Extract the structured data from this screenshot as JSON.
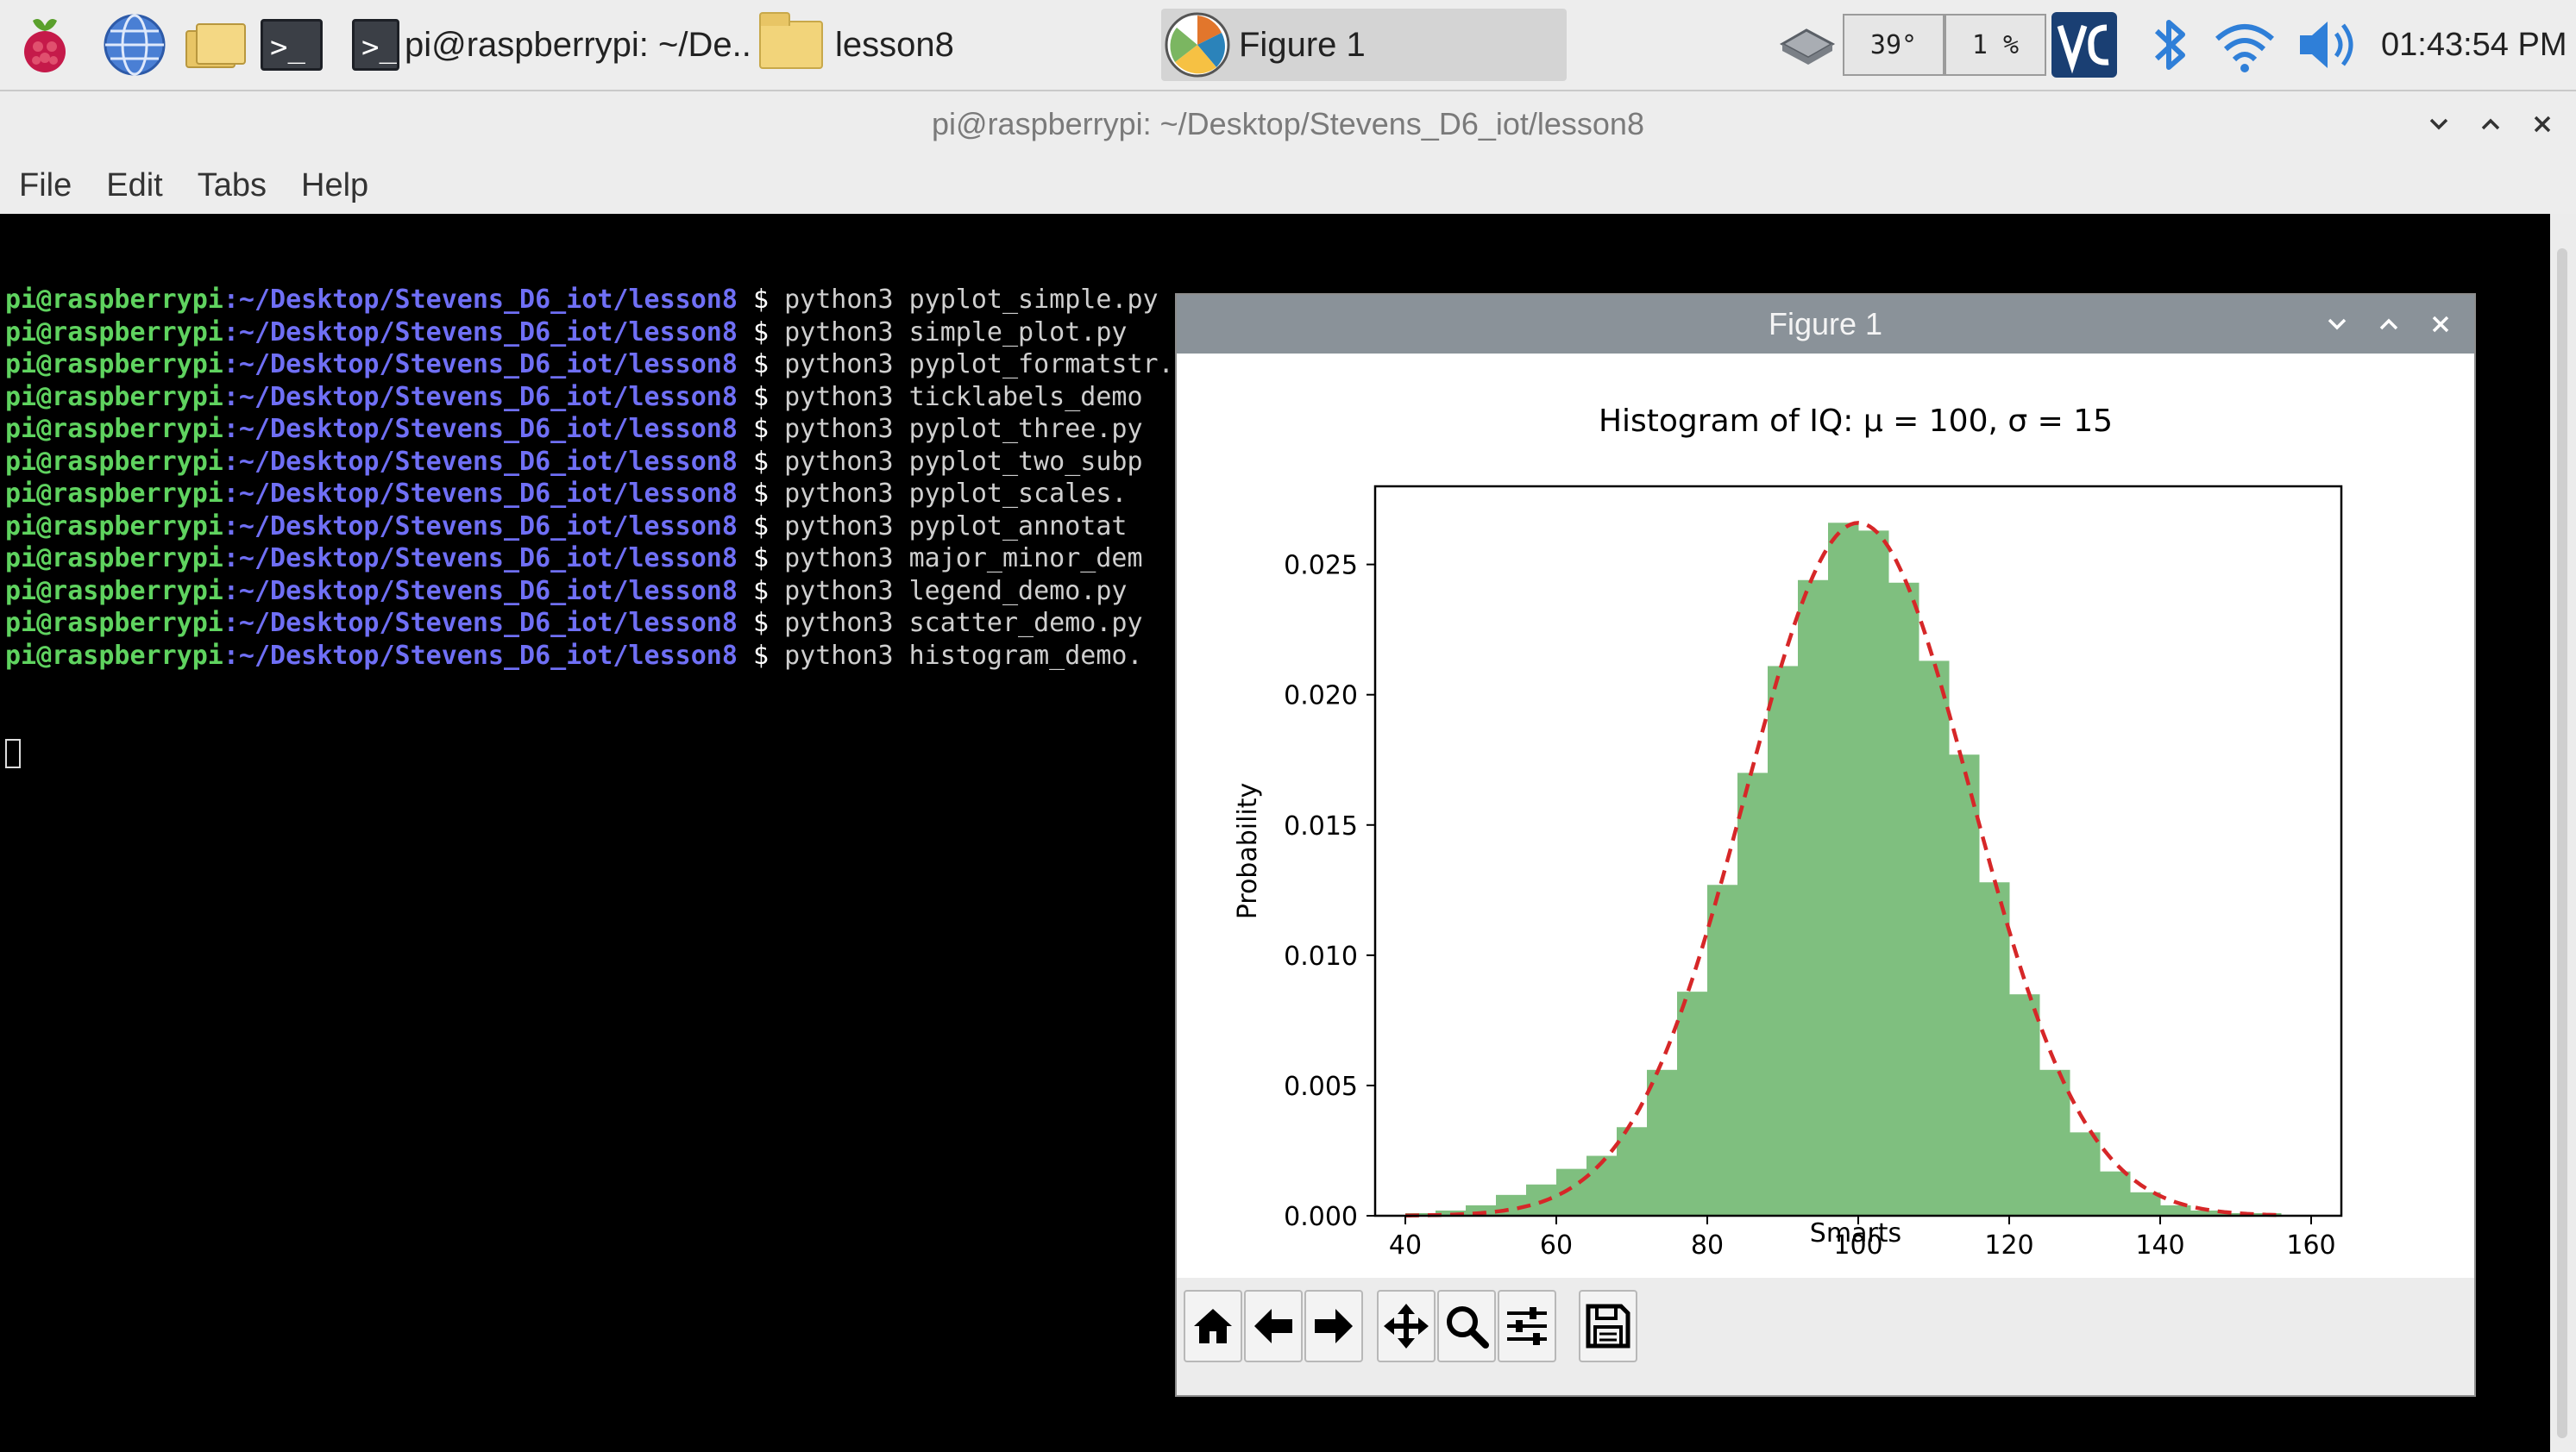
{
  "taskbar": {
    "tasks": [
      {
        "label": "pi@raspberrypi: ~/De...",
        "icon": "terminal-icon"
      },
      {
        "label": "lesson8",
        "icon": "folder-icon"
      },
      {
        "label": "Figure 1",
        "icon": "matplotlib-icon"
      }
    ],
    "cpu_temp": "39°",
    "cpu_usage": "1 %",
    "clock": "01:43:54 PM",
    "launchers": [
      "raspberry-menu-icon",
      "web-browser-icon",
      "file-manager-icon",
      "terminal-icon"
    ],
    "tray_icons": [
      "eject-icon",
      "vnc-icon",
      "bluetooth-icon",
      "wifi-icon",
      "volume-icon"
    ]
  },
  "terminal": {
    "title": "pi@raspberrypi: ~/Desktop/Stevens_D6_iot/lesson8",
    "menu": [
      "File",
      "Edit",
      "Tabs",
      "Help"
    ],
    "user": "pi@raspberrypi",
    "path": ":~/Desktop/Stevens_D6_iot/lesson8",
    "prompt_symbol": " $ ",
    "commands": [
      "python3 pyplot_simple.py",
      "python3 simple_plot.py",
      "python3 pyplot_formatstr.py",
      "python3 ticklabels_demo",
      "python3 pyplot_three.py",
      "python3 pyplot_two_subp",
      "python3 pyplot_scales.",
      "python3 pyplot_annotat",
      "python3 major_minor_dem",
      "python3 legend_demo.py",
      "python3 scatter_demo.py",
      "python3 histogram_demo."
    ]
  },
  "figure": {
    "window_title": "Figure 1",
    "toolbar": [
      "home-icon",
      "back-arrow-icon",
      "forward-arrow-icon",
      "pan-icon",
      "zoom-icon",
      "configure-subplots-icon",
      "save-icon"
    ]
  },
  "chart_data": {
    "type": "bar",
    "title": "Histogram of IQ: μ = 100, σ = 15",
    "xlabel": "Smarts",
    "ylabel": "Probability",
    "xlim": [
      36,
      164
    ],
    "ylim": [
      0,
      0.028
    ],
    "xticks": [
      40,
      60,
      80,
      100,
      120,
      140,
      160
    ],
    "yticks": [
      0.0,
      0.005,
      0.01,
      0.015,
      0.02,
      0.025
    ],
    "ytick_labels": [
      "0.000",
      "0.005",
      "0.010",
      "0.015",
      "0.020",
      "0.025"
    ],
    "bar_color": "#7fbf7f",
    "curve_color": "#d62728",
    "bin_width": 4,
    "bin_starts": [
      40,
      44,
      48,
      52,
      56,
      60,
      64,
      68,
      72,
      76,
      80,
      84,
      88,
      92,
      96,
      100,
      104,
      108,
      112,
      116,
      120,
      124,
      128,
      132,
      136,
      140,
      144,
      148,
      152
    ],
    "values": [
      0.0001,
      0.0002,
      0.0004,
      0.0008,
      0.0012,
      0.0018,
      0.0023,
      0.0034,
      0.0056,
      0.0086,
      0.0127,
      0.017,
      0.0211,
      0.0244,
      0.0266,
      0.0263,
      0.0243,
      0.0213,
      0.0177,
      0.0128,
      0.0085,
      0.0056,
      0.0032,
      0.0017,
      0.0009,
      0.0004,
      0.0002,
      0.0001,
      0.0001
    ],
    "curve": {
      "type": "normal_pdf",
      "mu": 100,
      "sigma": 15,
      "style": "dashed"
    }
  }
}
